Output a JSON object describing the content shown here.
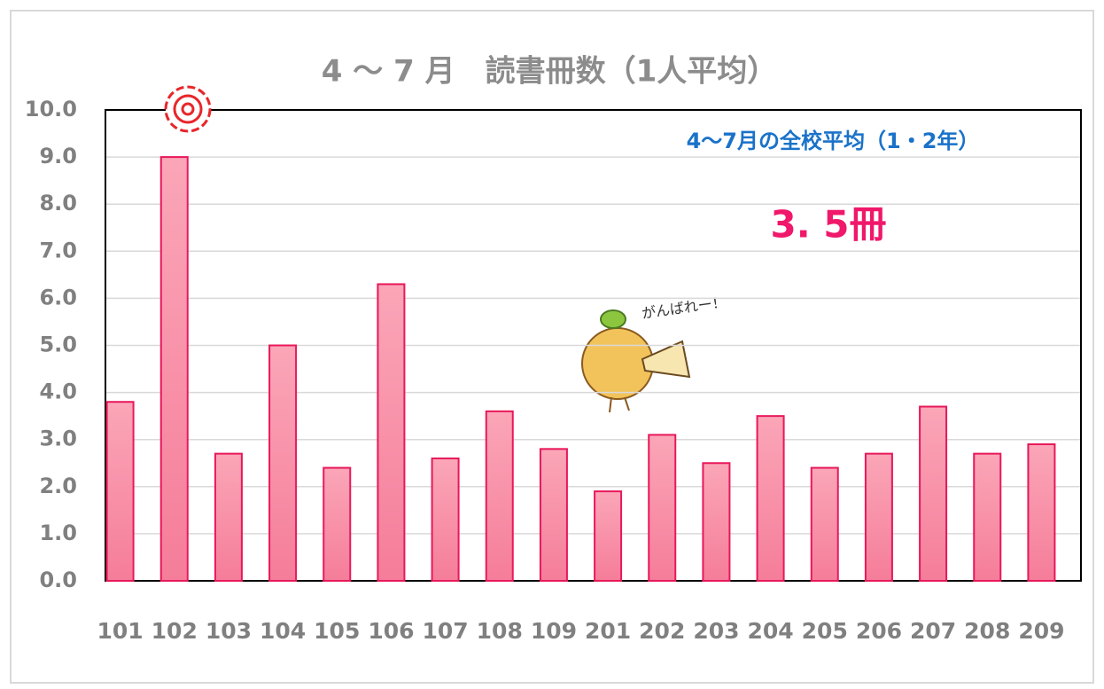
{
  "chart_data": {
    "type": "bar",
    "title": "4 ～ 7 月　読書冊数（1人平均）",
    "categories": [
      "101",
      "102",
      "103",
      "104",
      "105",
      "106",
      "107",
      "108",
      "109",
      "201",
      "202",
      "203",
      "204",
      "205",
      "206",
      "207",
      "208",
      "209"
    ],
    "values": [
      3.8,
      9.0,
      2.7,
      5.0,
      2.4,
      6.3,
      2.6,
      3.6,
      2.8,
      1.9,
      3.1,
      2.5,
      3.5,
      2.4,
      2.7,
      3.7,
      2.7,
      2.9
    ],
    "color": "#f88aa4",
    "ylim": [
      0,
      10
    ],
    "yticks": [
      {
        "value": 0,
        "label": "0.0"
      },
      {
        "value": 1,
        "label": "1.0"
      },
      {
        "value": 2,
        "label": "2.0"
      },
      {
        "value": 3,
        "label": "3.0"
      },
      {
        "value": 4,
        "label": "4.0"
      },
      {
        "value": 5,
        "label": "5.0"
      },
      {
        "value": 6,
        "label": "6.0"
      },
      {
        "value": 7,
        "label": "7.0"
      },
      {
        "value": 8,
        "label": "8.0"
      },
      {
        "value": 9,
        "label": "9.0"
      },
      {
        "value": 10,
        "label": "10.0"
      }
    ],
    "grid": true,
    "annotations": [
      "4〜7月の全校平均（1・2年）",
      "3. 5冊",
      "がんばれー！"
    ]
  }
}
